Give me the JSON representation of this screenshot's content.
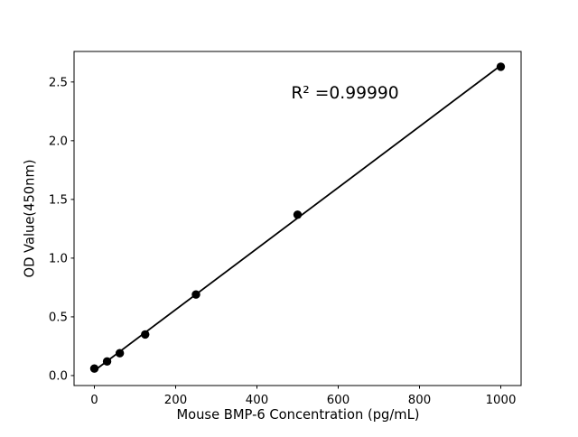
{
  "chart_data": {
    "type": "scatter",
    "title": "",
    "xlabel": "Mouse BMP-6 Concentration (pg/mL)",
    "ylabel": "OD Value(450nm)",
    "x": [
      0,
      31.25,
      62.5,
      125,
      250,
      500,
      1000
    ],
    "y": [
      0.06,
      0.12,
      0.19,
      0.35,
      0.69,
      1.37,
      2.63
    ],
    "fit": "linear",
    "annotation": "R² =0.99990",
    "r_squared": "0.99990",
    "xlim": [
      -50,
      1050
    ],
    "ylim": [
      -0.085,
      2.76
    ],
    "xticks": [
      0,
      200,
      400,
      600,
      800,
      1000
    ],
    "yticks": [
      0.0,
      0.5,
      1.0,
      1.5,
      2.0,
      2.5
    ],
    "grid": false,
    "legend": null,
    "marker": "circle",
    "colors": {
      "marker": "#000000",
      "line": "#000000",
      "axes": "#000000",
      "background": "#ffffff"
    }
  }
}
